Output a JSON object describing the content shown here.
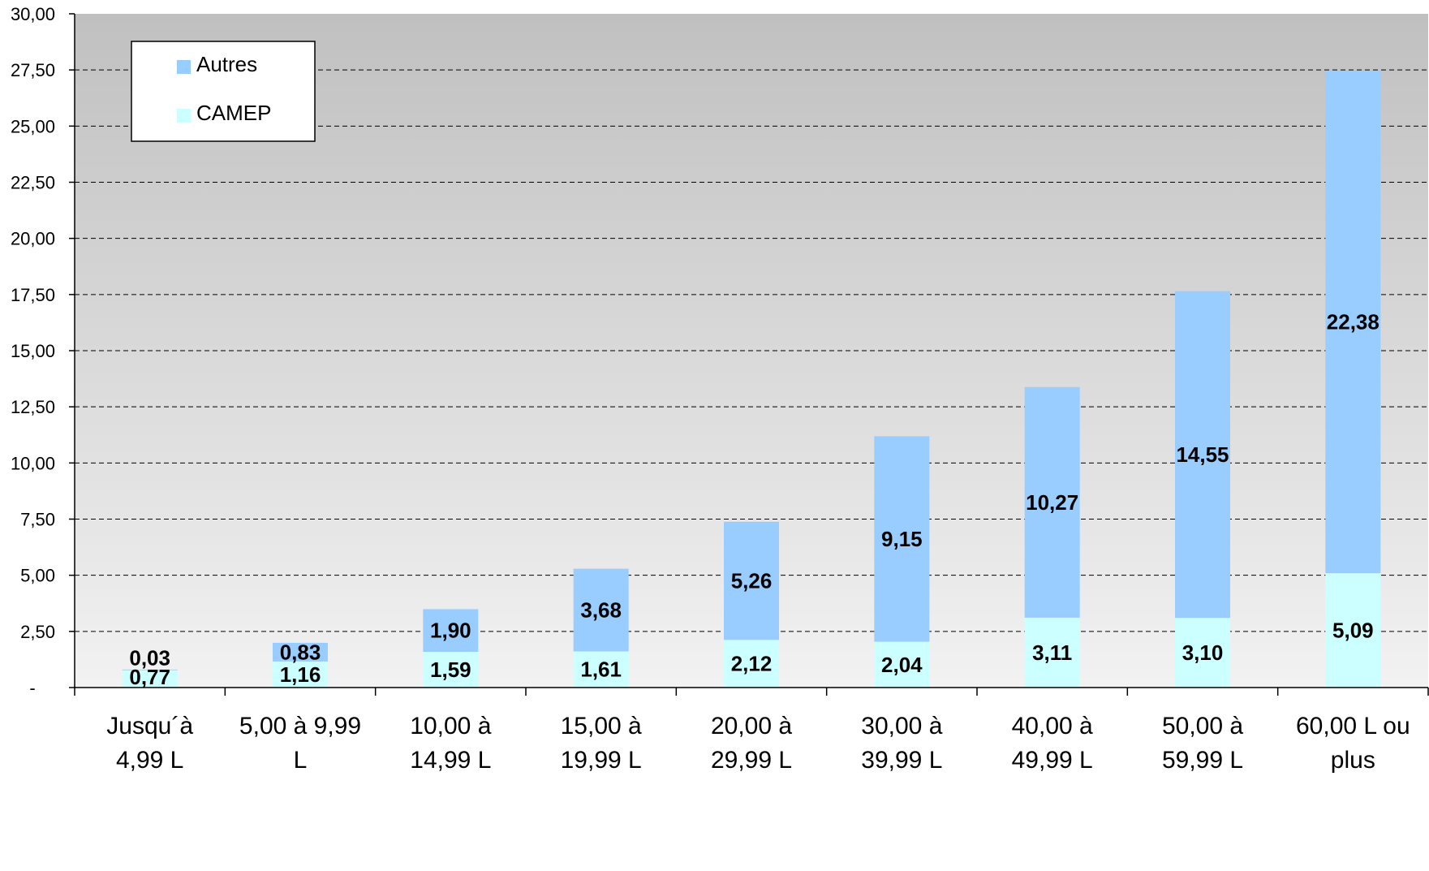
{
  "chart_data": {
    "type": "bar",
    "stacked": true,
    "categories": [
      [
        "Jusqu´à",
        "4,99 L"
      ],
      [
        "5,00 à 9,99",
        "L"
      ],
      [
        "10,00 à",
        "14,99 L"
      ],
      [
        "15,00 à",
        "19,99 L"
      ],
      [
        "20,00 à",
        "29,99 L"
      ],
      [
        "30,00 à",
        "39,99 L"
      ],
      [
        "40,00 à",
        "49,99 L"
      ],
      [
        "50,00 à",
        "59,99 L"
      ],
      [
        "60,00 L ou",
        "plus"
      ]
    ],
    "series": [
      {
        "name": "CAMEP",
        "color": "#ccffff",
        "values": [
          0.77,
          1.16,
          1.59,
          1.61,
          2.12,
          2.04,
          3.11,
          3.1,
          5.09
        ],
        "labels": [
          "0,77",
          "1,16",
          "1,59",
          "1,61",
          "2,12",
          "2,04",
          "3,11",
          "3,10",
          "5,09"
        ]
      },
      {
        "name": "Autres",
        "color": "#99ccff",
        "values": [
          0.03,
          0.83,
          1.9,
          3.68,
          5.26,
          9.15,
          10.27,
          14.55,
          22.38
        ],
        "labels": [
          "0,03",
          "0,83",
          "1,90",
          "3,68",
          "5,26",
          "9,15",
          "10,27",
          "14,55",
          "22,38"
        ]
      }
    ],
    "ylim": [
      0,
      30
    ],
    "yticks": [
      0,
      2.5,
      5,
      7.5,
      10,
      12.5,
      15,
      17.5,
      20,
      22.5,
      25,
      27.5,
      30
    ],
    "ytick_labels": [
      "-",
      "2,50",
      "5,00",
      "7,50",
      "10,00",
      "12,50",
      "15,00",
      "17,50",
      "20,00",
      "22,50",
      "25,00",
      "27,50",
      "30,00"
    ],
    "title": "",
    "xlabel": "",
    "ylabel": "",
    "grid": "horizontal-dashed",
    "legend_position": "top-left",
    "legend_order": [
      "Autres",
      "CAMEP"
    ],
    "background_gradient": [
      "#c0c0c0",
      "#f2f2f2"
    ]
  }
}
